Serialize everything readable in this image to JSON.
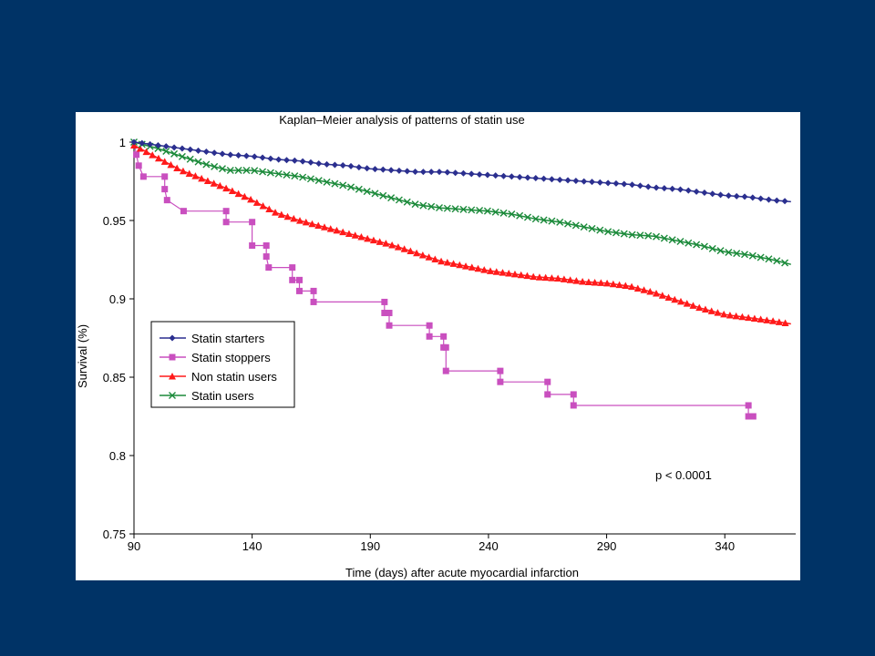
{
  "slide": {
    "background": "#003366"
  },
  "chart_data": {
    "type": "line",
    "title": "Kaplan–Meier analysis of patterns of statin use",
    "xlabel": "Time (days) after acute myocardial infarction",
    "ylabel": "Survival (%)",
    "xlim": [
      90,
      370
    ],
    "ylim": [
      0.75,
      1.0
    ],
    "x_ticks": [
      90,
      140,
      190,
      240,
      290,
      340
    ],
    "y_ticks": [
      0.75,
      0.8,
      0.85,
      0.9,
      0.95,
      1
    ],
    "y_tick_labels": [
      "0.75",
      "0.8",
      "0.85",
      "0.9",
      "0.95",
      "1"
    ],
    "grid": false,
    "legend_position": "left-middle",
    "annotation": "p < 0.0001",
    "series": [
      {
        "name": "Statin starters",
        "color": "#2b2f8f",
        "marker": "diamond",
        "step": false,
        "points": [
          [
            90,
            1.0
          ],
          [
            100,
            0.998
          ],
          [
            110,
            0.996
          ],
          [
            120,
            0.994
          ],
          [
            130,
            0.992
          ],
          [
            140,
            0.991
          ],
          [
            150,
            0.989
          ],
          [
            160,
            0.988
          ],
          [
            170,
            0.986
          ],
          [
            180,
            0.985
          ],
          [
            190,
            0.983
          ],
          [
            200,
            0.982
          ],
          [
            210,
            0.981
          ],
          [
            220,
            0.981
          ],
          [
            230,
            0.98
          ],
          [
            240,
            0.979
          ],
          [
            250,
            0.978
          ],
          [
            260,
            0.977
          ],
          [
            270,
            0.976
          ],
          [
            280,
            0.975
          ],
          [
            290,
            0.974
          ],
          [
            300,
            0.973
          ],
          [
            310,
            0.971
          ],
          [
            320,
            0.97
          ],
          [
            330,
            0.968
          ],
          [
            340,
            0.966
          ],
          [
            350,
            0.965
          ],
          [
            360,
            0.963
          ],
          [
            368,
            0.962
          ]
        ]
      },
      {
        "name": "Statin stoppers",
        "color": "#c94fbf",
        "marker": "square",
        "step": true,
        "points": [
          [
            90,
            1.0
          ],
          [
            91,
            0.992
          ],
          [
            92,
            0.985
          ],
          [
            94,
            0.978
          ],
          [
            103,
            0.978
          ],
          [
            103,
            0.97
          ],
          [
            104,
            0.963
          ],
          [
            111,
            0.956
          ],
          [
            129,
            0.956
          ],
          [
            129,
            0.949
          ],
          [
            140,
            0.949
          ],
          [
            140,
            0.934
          ],
          [
            146,
            0.934
          ],
          [
            146,
            0.927
          ],
          [
            147,
            0.92
          ],
          [
            157,
            0.92
          ],
          [
            157,
            0.912
          ],
          [
            160,
            0.912
          ],
          [
            160,
            0.905
          ],
          [
            166,
            0.905
          ],
          [
            166,
            0.898
          ],
          [
            196,
            0.898
          ],
          [
            196,
            0.891
          ],
          [
            198,
            0.891
          ],
          [
            198,
            0.883
          ],
          [
            215,
            0.883
          ],
          [
            215,
            0.876
          ],
          [
            221,
            0.876
          ],
          [
            221,
            0.869
          ],
          [
            222,
            0.869
          ],
          [
            222,
            0.854
          ],
          [
            245,
            0.854
          ],
          [
            245,
            0.847
          ],
          [
            265,
            0.847
          ],
          [
            265,
            0.839
          ],
          [
            276,
            0.839
          ],
          [
            276,
            0.832
          ],
          [
            350,
            0.832
          ],
          [
            350,
            0.825
          ],
          [
            352,
            0.825
          ]
        ]
      },
      {
        "name": "Non statin users",
        "color": "#ff1a1a",
        "marker": "triangle",
        "step": false,
        "points": [
          [
            90,
            0.998
          ],
          [
            100,
            0.99
          ],
          [
            110,
            0.982
          ],
          [
            120,
            0.976
          ],
          [
            130,
            0.97
          ],
          [
            140,
            0.963
          ],
          [
            150,
            0.955
          ],
          [
            160,
            0.95
          ],
          [
            170,
            0.946
          ],
          [
            180,
            0.942
          ],
          [
            190,
            0.938
          ],
          [
            200,
            0.934
          ],
          [
            210,
            0.929
          ],
          [
            220,
            0.924
          ],
          [
            230,
            0.921
          ],
          [
            240,
            0.918
          ],
          [
            250,
            0.916
          ],
          [
            260,
            0.914
          ],
          [
            270,
            0.913
          ],
          [
            280,
            0.911
          ],
          [
            290,
            0.91
          ],
          [
            300,
            0.908
          ],
          [
            310,
            0.904
          ],
          [
            320,
            0.899
          ],
          [
            330,
            0.894
          ],
          [
            340,
            0.89
          ],
          [
            350,
            0.888
          ],
          [
            360,
            0.886
          ],
          [
            368,
            0.884
          ]
        ]
      },
      {
        "name": "Statin users",
        "color": "#1b8a3a",
        "marker": "x",
        "step": false,
        "points": [
          [
            90,
            1.0
          ],
          [
            100,
            0.996
          ],
          [
            110,
            0.991
          ],
          [
            120,
            0.986
          ],
          [
            130,
            0.982
          ],
          [
            140,
            0.982
          ],
          [
            150,
            0.98
          ],
          [
            160,
            0.978
          ],
          [
            170,
            0.975
          ],
          [
            180,
            0.972
          ],
          [
            190,
            0.968
          ],
          [
            200,
            0.964
          ],
          [
            210,
            0.96
          ],
          [
            220,
            0.958
          ],
          [
            230,
            0.957
          ],
          [
            240,
            0.956
          ],
          [
            250,
            0.954
          ],
          [
            260,
            0.951
          ],
          [
            270,
            0.949
          ],
          [
            280,
            0.946
          ],
          [
            290,
            0.943
          ],
          [
            300,
            0.941
          ],
          [
            310,
            0.94
          ],
          [
            320,
            0.937
          ],
          [
            330,
            0.934
          ],
          [
            340,
            0.93
          ],
          [
            350,
            0.928
          ],
          [
            360,
            0.925
          ],
          [
            368,
            0.922
          ]
        ]
      }
    ]
  }
}
